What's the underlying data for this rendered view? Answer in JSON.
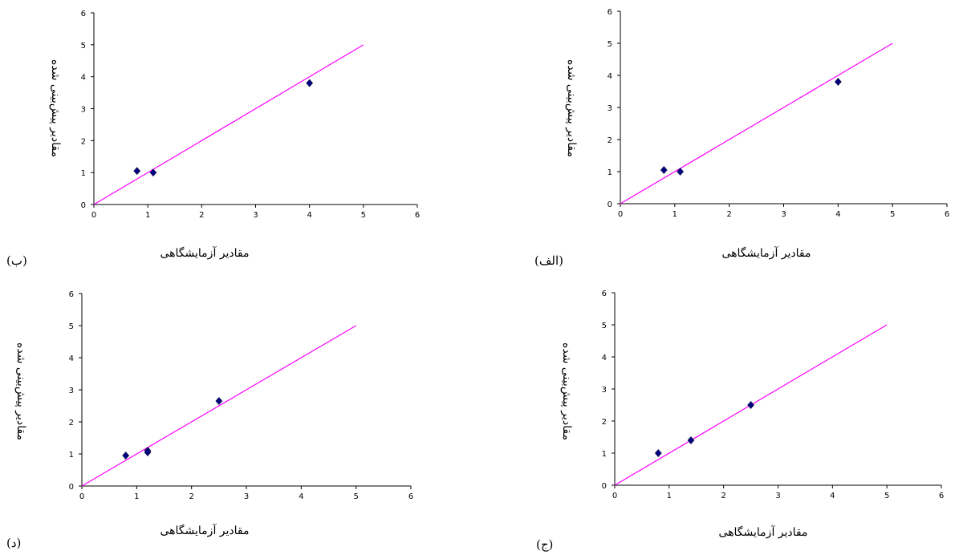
{
  "colors": {
    "fit_line": "#ff00ff",
    "points": "#000080",
    "axis": "#000000"
  },
  "chart_data": [
    {
      "id": "b",
      "type": "scatter",
      "panel_label": "(ب)",
      "xlabel": "مقادیر آزمایشگاهی",
      "ylabel": "مقادیر پیش‌بینی شده",
      "xlim": [
        0,
        6
      ],
      "ylim": [
        0,
        6
      ],
      "xticks": [
        0,
        1,
        2,
        3,
        4,
        5,
        6
      ],
      "yticks": [
        0,
        1,
        2,
        3,
        4,
        5,
        6
      ],
      "grid": false,
      "points": [
        [
          0.8,
          1.05
        ],
        [
          1.1,
          1.0
        ],
        [
          4.0,
          3.8
        ]
      ],
      "fit_line": [
        [
          0,
          0
        ],
        [
          5,
          5
        ]
      ]
    },
    {
      "id": "alef",
      "type": "scatter",
      "panel_label": "(الف)",
      "xlabel": "مقادیر آزمایشگاهی",
      "ylabel": "مقادیر پیش‌بینی شده",
      "xlim": [
        0,
        6
      ],
      "ylim": [
        0,
        6
      ],
      "xticks": [
        0,
        1,
        2,
        3,
        4,
        5,
        6
      ],
      "yticks": [
        0,
        1,
        2,
        3,
        4,
        5,
        6
      ],
      "grid": false,
      "points": [
        [
          0.8,
          1.05
        ],
        [
          1.1,
          1.0
        ],
        [
          4.0,
          3.8
        ]
      ],
      "fit_line": [
        [
          0,
          0
        ],
        [
          5,
          5
        ]
      ]
    },
    {
      "id": "dal",
      "type": "scatter",
      "panel_label": "(د)",
      "xlabel": "مقادیر آزمایشگاهی",
      "ylabel": "مقادیر پیش‌بینی شده",
      "xlim": [
        0,
        6
      ],
      "ylim": [
        0,
        6
      ],
      "xticks": [
        0,
        1,
        2,
        3,
        4,
        5,
        6
      ],
      "yticks": [
        0,
        1,
        2,
        3,
        4,
        5,
        6
      ],
      "grid": false,
      "points": [
        [
          0.8,
          0.95
        ],
        [
          1.2,
          1.1
        ],
        [
          1.2,
          1.05
        ],
        [
          2.5,
          2.65
        ]
      ],
      "fit_line": [
        [
          0,
          0
        ],
        [
          5,
          5
        ]
      ]
    },
    {
      "id": "jim",
      "type": "scatter",
      "panel_label": "(ج)",
      "xlabel": "مقادیر آزمایشگاهی",
      "ylabel": "مقادیر پیش‌بینی شده",
      "xlim": [
        0,
        6
      ],
      "ylim": [
        0,
        6
      ],
      "xticks": [
        0,
        1,
        2,
        3,
        4,
        5,
        6
      ],
      "yticks": [
        0,
        1,
        2,
        3,
        4,
        5,
        6
      ],
      "grid": false,
      "points": [
        [
          0.8,
          1.0
        ],
        [
          1.4,
          1.4
        ],
        [
          2.5,
          2.5
        ]
      ],
      "fit_line": [
        [
          0,
          0
        ],
        [
          5,
          5
        ]
      ]
    }
  ]
}
